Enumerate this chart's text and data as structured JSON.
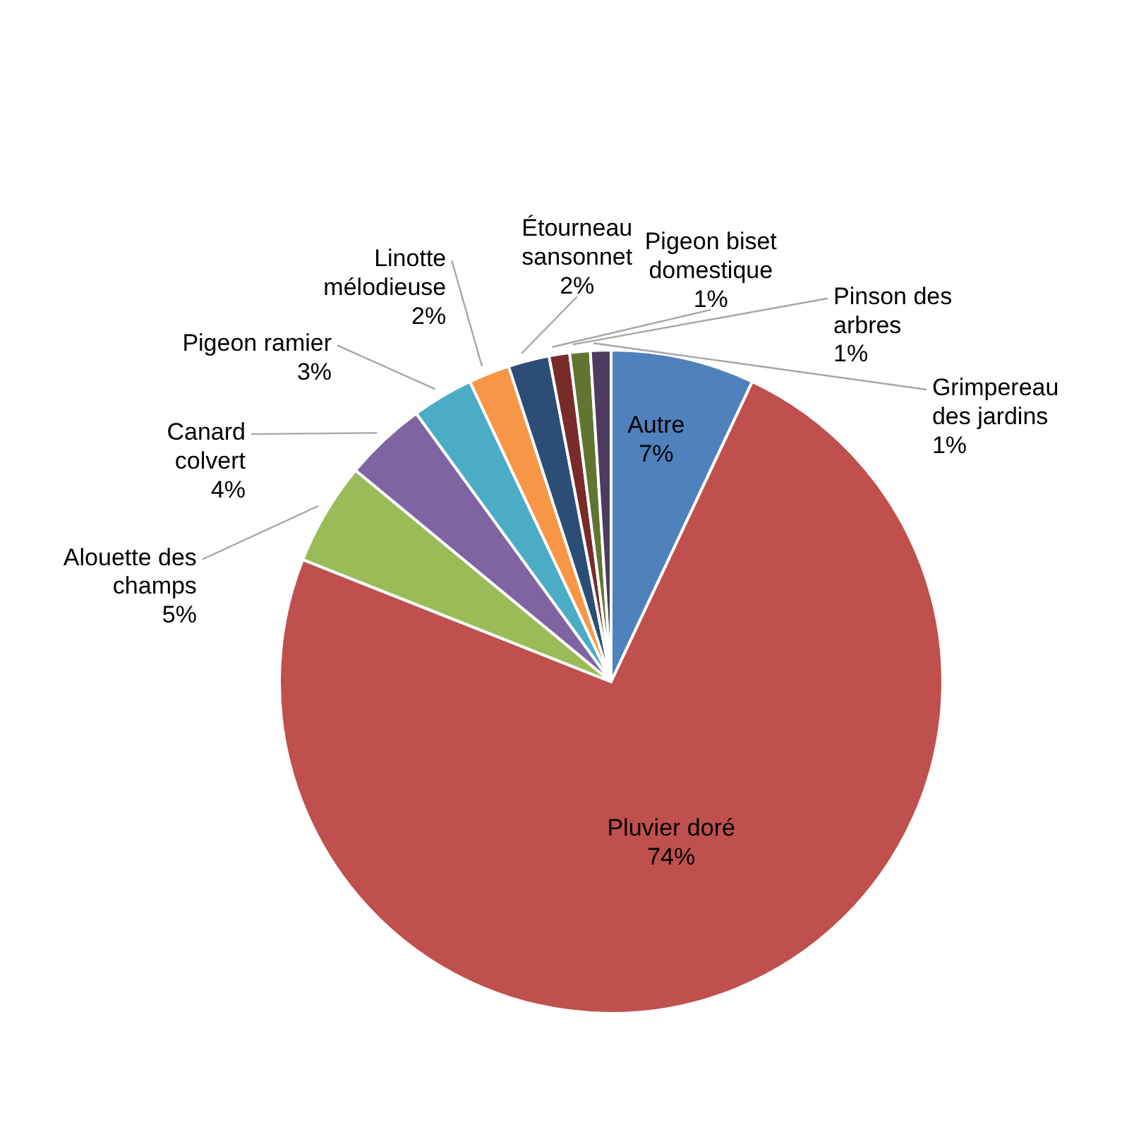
{
  "chart_data": {
    "type": "pie",
    "categories": [
      "Autre",
      "Pluvier doré",
      "Alouette des champs",
      "Canard colvert",
      "Pigeon ramier",
      "Linotte mélodieuse",
      "Étourneau sansonnet",
      "Pigeon biset domestique",
      "Pinson des arbres",
      "Grimpereau des jardins"
    ],
    "values": [
      7,
      74,
      5,
      4,
      3,
      2,
      2,
      1,
      1,
      1
    ],
    "colors": [
      "#4f81bd",
      "#c0504d",
      "#9bbb59",
      "#8064a2",
      "#4bacc6",
      "#f79646",
      "#2c4d75",
      "#772c2a",
      "#5f7530",
      "#4d3b62"
    ],
    "value_labels": [
      "7%",
      "74%",
      "5%",
      "4%",
      "3%",
      "2%",
      "2%",
      "1%",
      "1%",
      "1%"
    ]
  }
}
